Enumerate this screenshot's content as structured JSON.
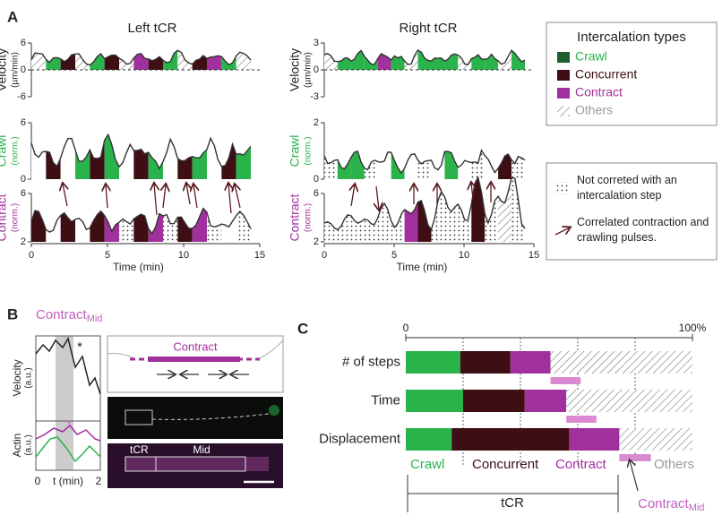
{
  "panel_a": {
    "label": "A",
    "left_title": "Left tCR",
    "right_title": "Right tCR",
    "rows": [
      {
        "label": "Velocity",
        "unit": "(µm/min)",
        "left_ticks": [
          6,
          0,
          -6
        ],
        "right_ticks": [
          3,
          0,
          -3
        ]
      },
      {
        "label": "Crawl",
        "unit": "(norm.)",
        "left_ticks": [
          6,
          0
        ],
        "right_ticks": [
          2,
          0
        ]
      },
      {
        "label": "Contract",
        "unit": "(norm.)",
        "left_ticks": [
          6,
          2
        ],
        "right_ticks": [
          6,
          2
        ]
      }
    ],
    "xticks": [
      0,
      5,
      10,
      15
    ],
    "xlabel": "Time (min)",
    "legend_title": "Intercalation types",
    "legend": [
      "Crawl",
      "Concurrent",
      "Contract",
      "Others"
    ],
    "note_dots": "Not correted with an intercalation step",
    "note_arrow": "Correlated contraction and crawling pulses."
  },
  "panel_b": {
    "label": "B",
    "title": "Contract",
    "title_sub": "Mid",
    "velocity_label": "Velocity",
    "velocity_unit": "(a.u.)",
    "actin_label": "Actin",
    "actin_unit": "(a.u.)",
    "star": "*",
    "x_start": "0",
    "x_label": "t (min)",
    "x_end": "2",
    "diagram_label": "Contract",
    "image_tcr": "tCR",
    "image_mid": "Mid"
  },
  "chart_data": {
    "type": "bar",
    "label": "C",
    "categories": [
      "# of steps",
      "Time",
      "Displacement"
    ],
    "series": [
      {
        "name": "Crawl",
        "color": "#2bb34b",
        "values": [
          19,
          20,
          16
        ]
      },
      {
        "name": "Concurrent",
        "color": "#3d0e13",
        "values": [
          17.5,
          21.5,
          41
        ]
      },
      {
        "name": "Contract",
        "color": "#a0309b",
        "values": [
          14,
          14.5,
          17.5
        ]
      },
      {
        "name": "Others",
        "color": "hatch",
        "values": [
          49.5,
          44,
          25.5
        ]
      }
    ],
    "mid_series": {
      "name": "Contract",
      "subscript": "Mid",
      "color": "#d98ad0",
      "values": [
        10.5,
        10.5,
        11
      ]
    },
    "xlim": [
      0,
      100
    ],
    "xticks": [
      0,
      {
        "value": 100,
        "label": "100%"
      }
    ],
    "grid_lines": [
      20,
      40,
      60,
      80
    ],
    "bracket_label": "tCR"
  }
}
